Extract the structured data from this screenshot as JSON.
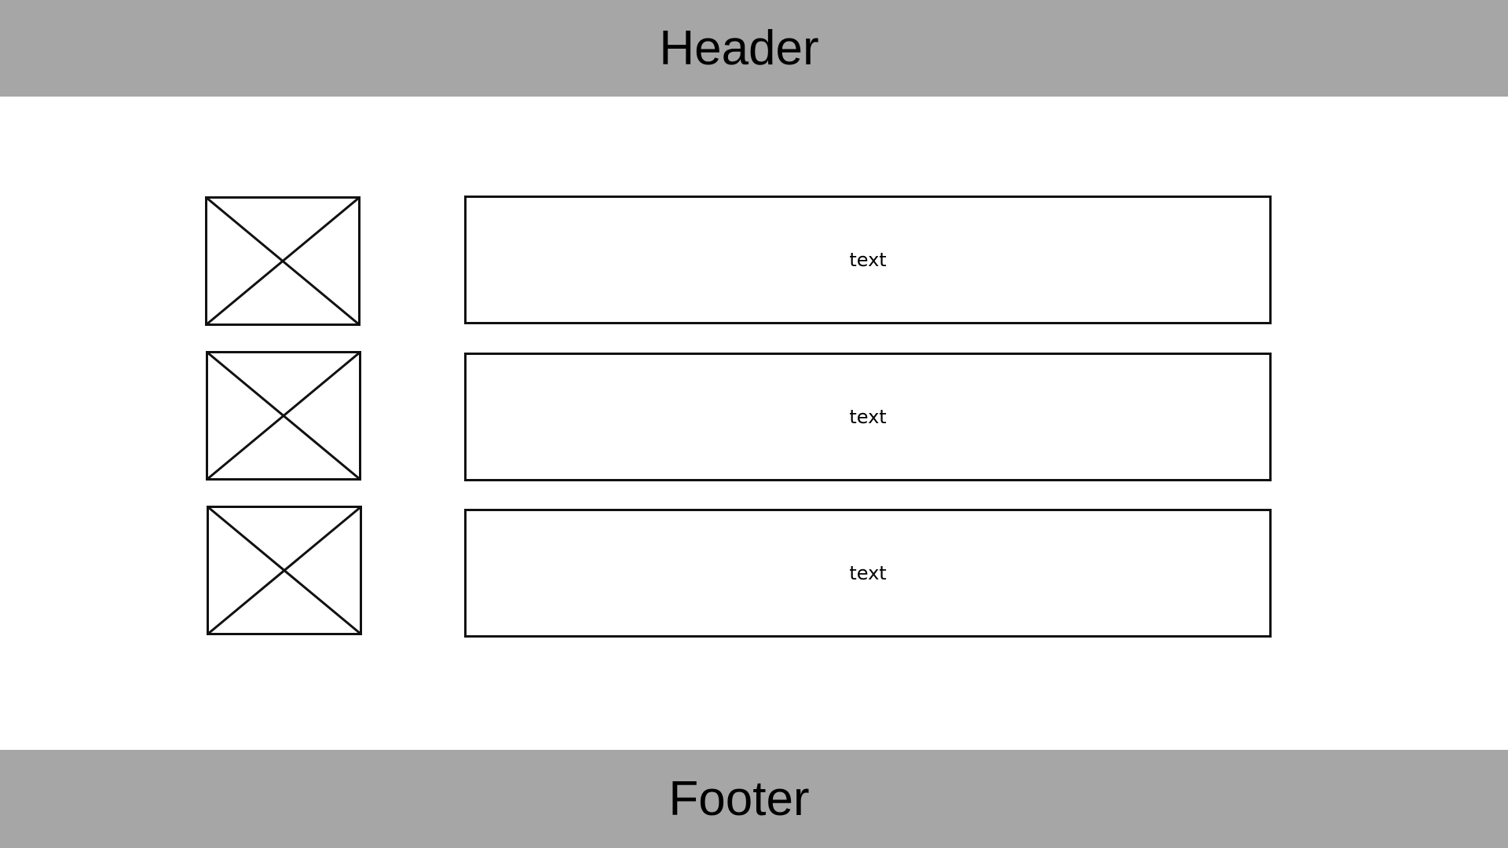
{
  "colors": {
    "band": "#a6a6a6",
    "stroke": "#111111",
    "background": "#ffffff",
    "text": "#000000"
  },
  "header": {
    "label": "Header"
  },
  "footer": {
    "label": "Footer"
  },
  "rows": [
    {
      "image_icon": "image-placeholder-icon",
      "text": "text"
    },
    {
      "image_icon": "image-placeholder-icon",
      "text": "text"
    },
    {
      "image_icon": "image-placeholder-icon",
      "text": "text"
    }
  ]
}
